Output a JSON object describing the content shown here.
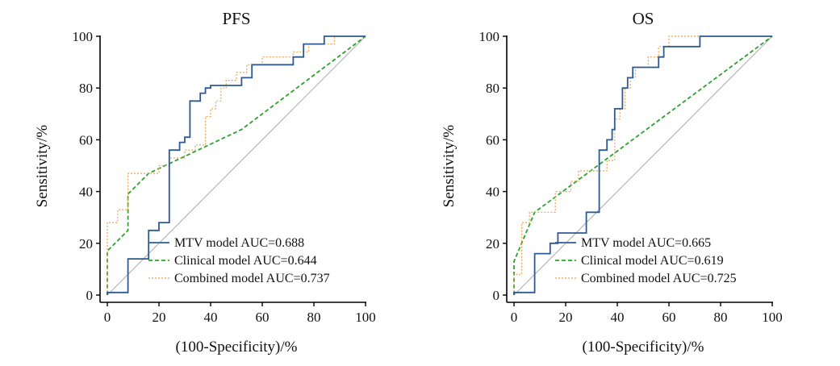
{
  "colors": {
    "mtv": "#2e5a94",
    "clinical": "#2ea12e",
    "combined": "#f0a050",
    "reference": "#b0b0b0",
    "axis": "#000000"
  },
  "chart_data": [
    {
      "type": "line",
      "title": "PFS",
      "xlabel": "(100-Specificity)/%",
      "ylabel": "Sensitivity/%",
      "xlim": [
        0,
        100
      ],
      "ylim": [
        0,
        100
      ],
      "xticks": [
        "0",
        "20",
        "40",
        "60",
        "80",
        "100"
      ],
      "yticks": [
        "0",
        "20",
        "40",
        "60",
        "80",
        "100"
      ],
      "grid": false,
      "legend_position": "bottom-right",
      "reference_line": [
        [
          0,
          0
        ],
        [
          100,
          100
        ]
      ],
      "series": [
        {
          "name": "MTV model AUC=0.688",
          "key": "mtv",
          "dash": "solid",
          "points": [
            [
              0,
              0
            ],
            [
              0,
              1
            ],
            [
              8,
              1
            ],
            [
              8,
              14
            ],
            [
              16,
              14
            ],
            [
              16,
              25
            ],
            [
              20,
              25
            ],
            [
              20,
              28
            ],
            [
              24,
              28
            ],
            [
              24,
              56
            ],
            [
              28,
              56
            ],
            [
              28,
              59
            ],
            [
              30,
              59
            ],
            [
              30,
              61
            ],
            [
              32,
              61
            ],
            [
              32,
              75
            ],
            [
              36,
              75
            ],
            [
              36,
              78
            ],
            [
              38,
              78
            ],
            [
              38,
              80
            ],
            [
              40,
              80
            ],
            [
              40,
              81
            ],
            [
              52,
              81
            ],
            [
              52,
              84
            ],
            [
              56,
              84
            ],
            [
              56,
              89
            ],
            [
              72,
              89
            ],
            [
              72,
              92
            ],
            [
              76,
              92
            ],
            [
              76,
              97
            ],
            [
              84,
              97
            ],
            [
              84,
              100
            ],
            [
              100,
              100
            ]
          ]
        },
        {
          "name": "Clinical model AUC=0.644",
          "key": "clinical",
          "dash": "dashed",
          "points": [
            [
              0,
              0
            ],
            [
              0,
              17
            ],
            [
              8,
              25
            ],
            [
              8,
              39
            ],
            [
              16,
              47
            ],
            [
              52,
              64
            ],
            [
              100,
              100
            ]
          ]
        },
        {
          "name": "Combined model AUC=0.737",
          "key": "combined",
          "dash": "dotted",
          "points": [
            [
              0,
              0
            ],
            [
              0,
              28
            ],
            [
              4,
              28
            ],
            [
              4,
              33
            ],
            [
              8,
              33
            ],
            [
              8,
              47
            ],
            [
              20,
              47
            ],
            [
              20,
              50
            ],
            [
              24,
              50
            ],
            [
              24,
              53
            ],
            [
              30,
              53
            ],
            [
              30,
              56
            ],
            [
              34,
              56
            ],
            [
              34,
              58
            ],
            [
              38,
              58
            ],
            [
              38,
              69
            ],
            [
              40,
              69
            ],
            [
              40,
              72
            ],
            [
              42,
              72
            ],
            [
              42,
              75
            ],
            [
              44,
              75
            ],
            [
              44,
              80
            ],
            [
              46,
              80
            ],
            [
              46,
              83
            ],
            [
              50,
              83
            ],
            [
              50,
              86
            ],
            [
              54,
              86
            ],
            [
              54,
              89
            ],
            [
              60,
              89
            ],
            [
              60,
              92
            ],
            [
              72,
              92
            ],
            [
              72,
              94
            ],
            [
              78,
              94
            ],
            [
              78,
              97
            ],
            [
              88,
              97
            ],
            [
              88,
              100
            ],
            [
              100,
              100
            ]
          ]
        }
      ]
    },
    {
      "type": "line",
      "title": "OS",
      "xlabel": "(100-Specificity)/%",
      "ylabel": "Sensitivity/%",
      "xlim": [
        0,
        100
      ],
      "ylim": [
        0,
        100
      ],
      "xticks": [
        "0",
        "20",
        "40",
        "60",
        "80",
        "100"
      ],
      "yticks": [
        "0",
        "20",
        "40",
        "60",
        "80",
        "100"
      ],
      "grid": false,
      "legend_position": "bottom-right",
      "reference_line": [
        [
          0,
          0
        ],
        [
          100,
          100
        ]
      ],
      "series": [
        {
          "name": "MTV model AUC=0.665",
          "key": "mtv",
          "dash": "solid",
          "points": [
            [
              0,
              0
            ],
            [
              0,
              1
            ],
            [
              8,
              1
            ],
            [
              8,
              16
            ],
            [
              14,
              16
            ],
            [
              14,
              20
            ],
            [
              17,
              20
            ],
            [
              17,
              24
            ],
            [
              28,
              24
            ],
            [
              28,
              32
            ],
            [
              33,
              32
            ],
            [
              33,
              56
            ],
            [
              36,
              56
            ],
            [
              36,
              60
            ],
            [
              38,
              60
            ],
            [
              38,
              64
            ],
            [
              39,
              64
            ],
            [
              39,
              72
            ],
            [
              42,
              72
            ],
            [
              42,
              80
            ],
            [
              44,
              80
            ],
            [
              44,
              84
            ],
            [
              46,
              84
            ],
            [
              46,
              88
            ],
            [
              56,
              88
            ],
            [
              56,
              92
            ],
            [
              58,
              92
            ],
            [
              58,
              96
            ],
            [
              72,
              96
            ],
            [
              72,
              100
            ],
            [
              100,
              100
            ]
          ]
        },
        {
          "name": "Clinical model AUC=0.619",
          "key": "clinical",
          "dash": "dashed",
          "points": [
            [
              0,
              0
            ],
            [
              0,
              13
            ],
            [
              8,
              32
            ],
            [
              100,
              100
            ]
          ]
        },
        {
          "name": "Combined model AUC=0.725",
          "key": "combined",
          "dash": "dotted",
          "points": [
            [
              0,
              0
            ],
            [
              0,
              8
            ],
            [
              3,
              8
            ],
            [
              3,
              28
            ],
            [
              6,
              28
            ],
            [
              6,
              32
            ],
            [
              16,
              32
            ],
            [
              16,
              40
            ],
            [
              22,
              40
            ],
            [
              22,
              44
            ],
            [
              25,
              44
            ],
            [
              25,
              48
            ],
            [
              36,
              48
            ],
            [
              36,
              52
            ],
            [
              39,
              52
            ],
            [
              39,
              68
            ],
            [
              41,
              68
            ],
            [
              41,
              72
            ],
            [
              43,
              72
            ],
            [
              43,
              80
            ],
            [
              45,
              80
            ],
            [
              45,
              84
            ],
            [
              47,
              84
            ],
            [
              47,
              88
            ],
            [
              52,
              88
            ],
            [
              52,
              92
            ],
            [
              56,
              92
            ],
            [
              56,
              96
            ],
            [
              60,
              96
            ],
            [
              60,
              100
            ],
            [
              100,
              100
            ]
          ]
        }
      ]
    }
  ]
}
